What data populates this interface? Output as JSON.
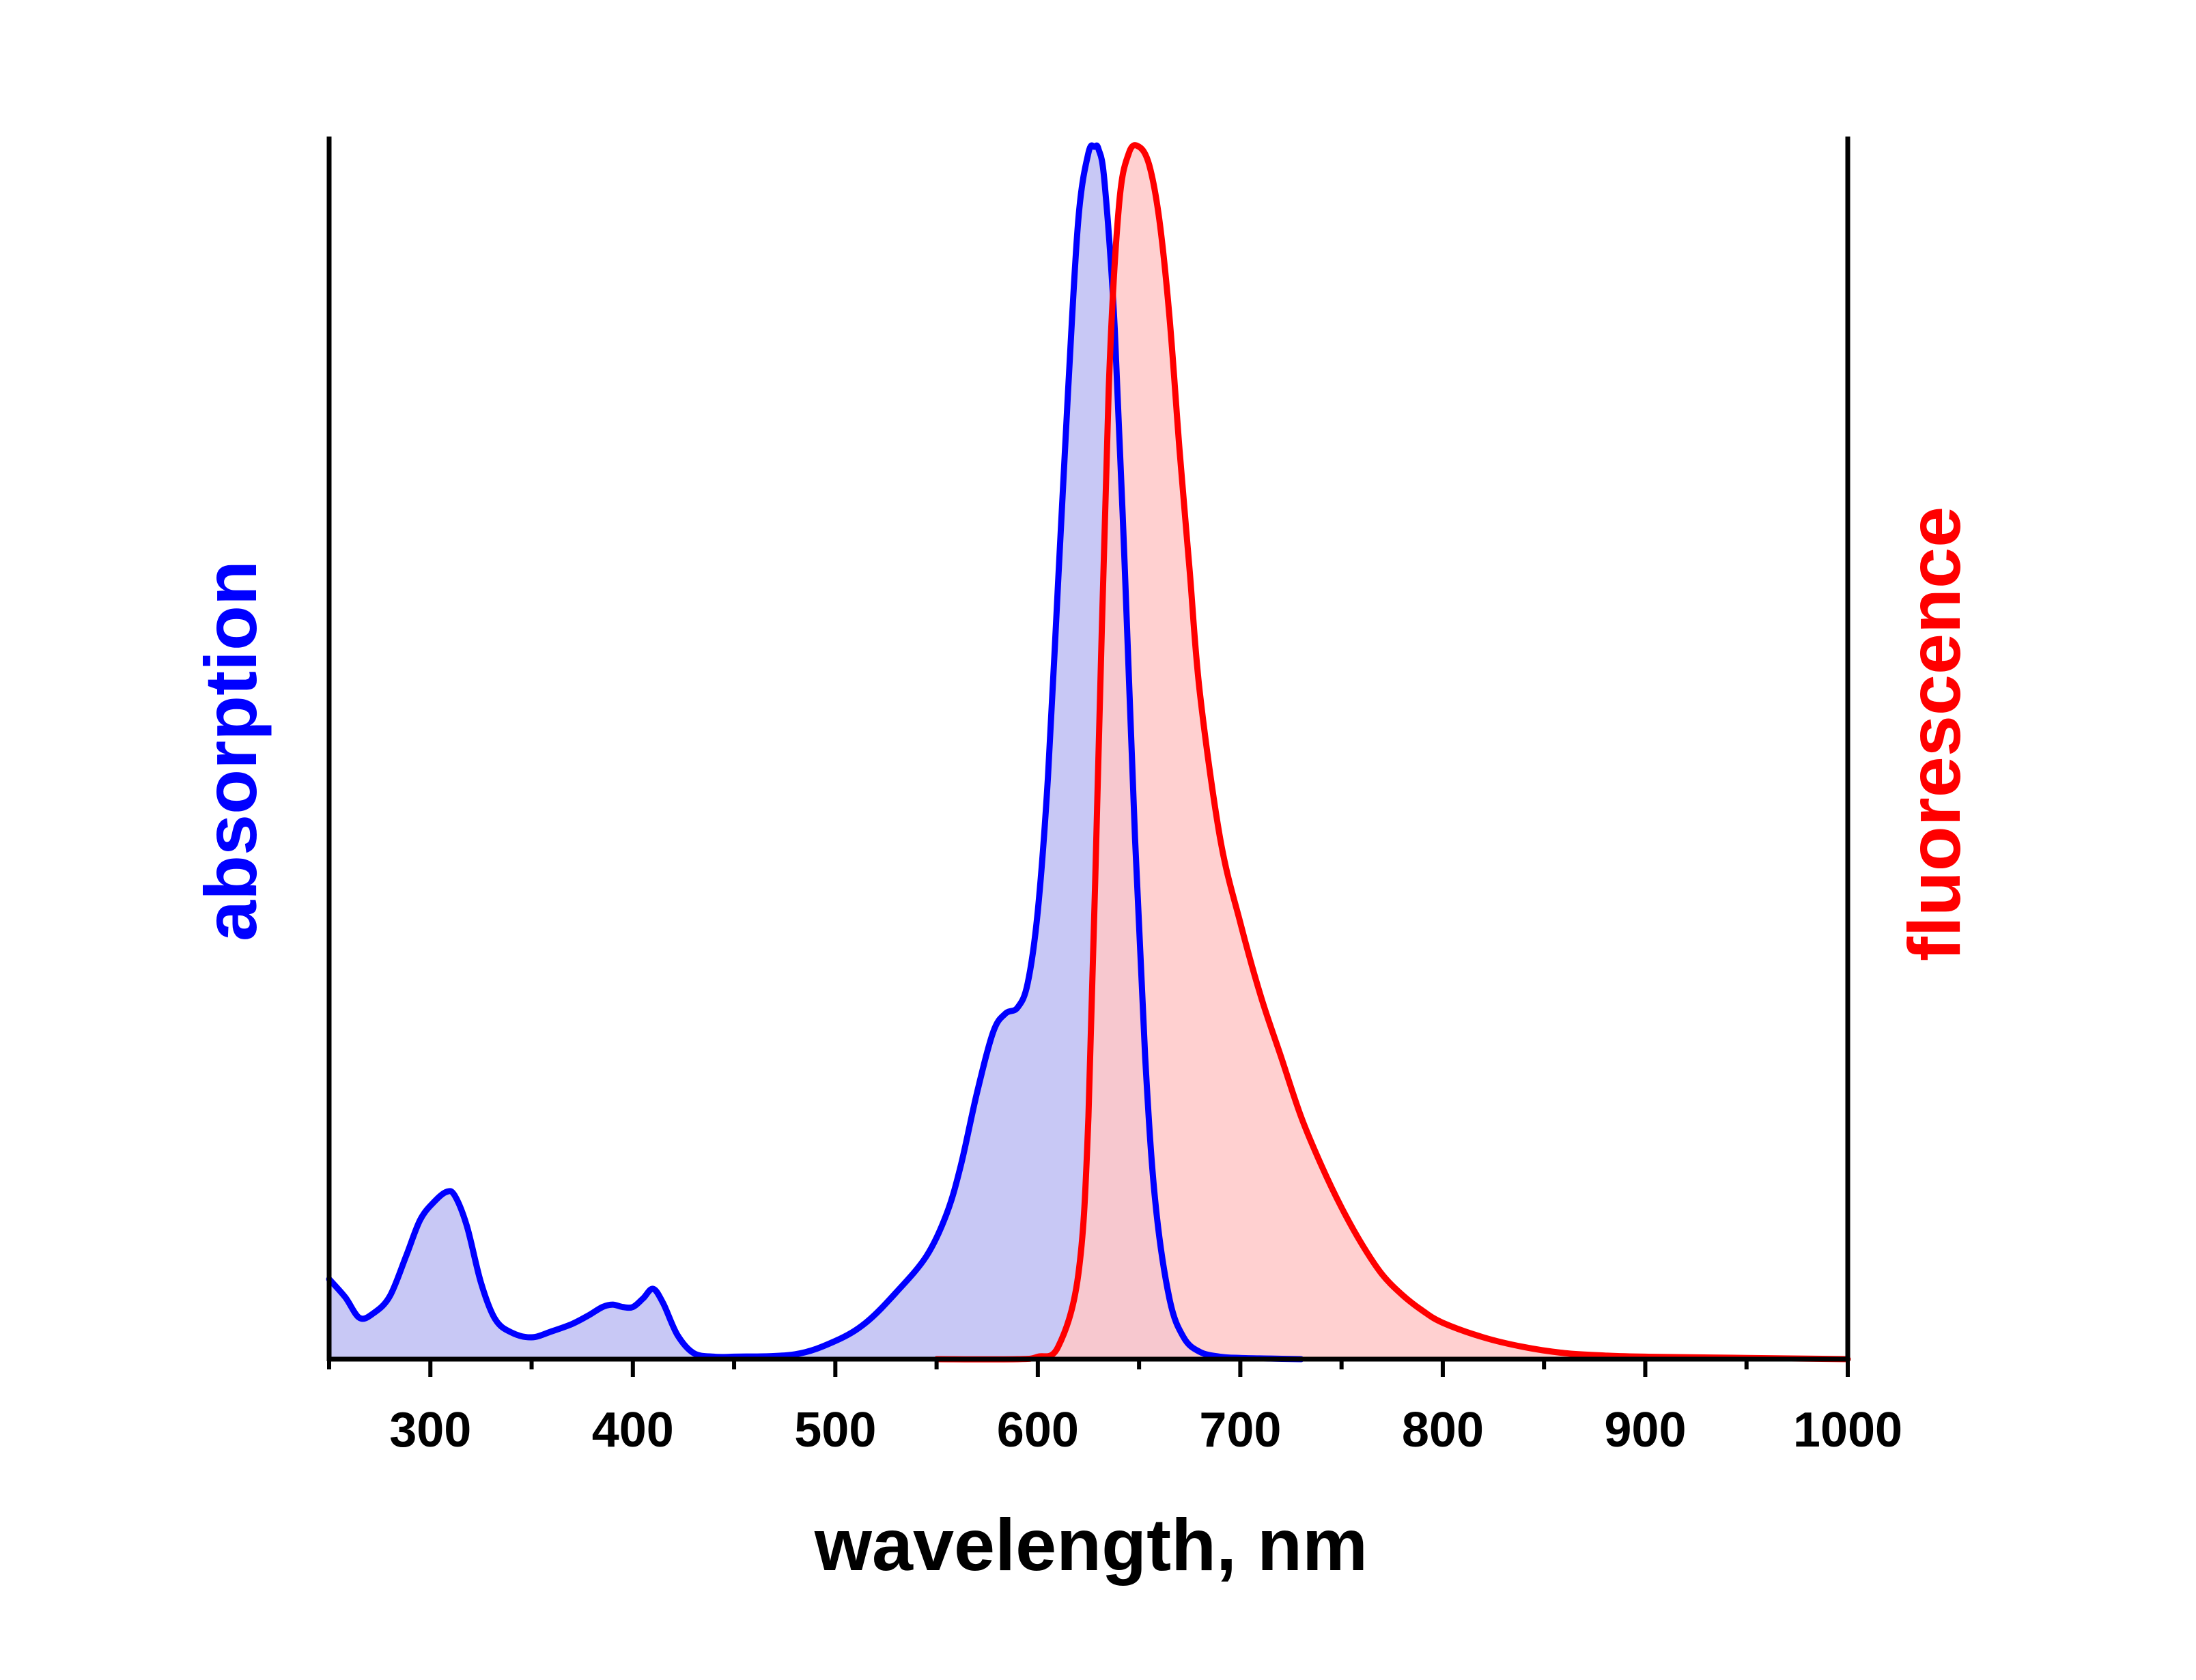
{
  "chart_data": {
    "type": "area",
    "xlabel": "wavelength, nm",
    "ylabel_left": "absorption",
    "ylabel_right": "fluorescence",
    "xlim": [
      250,
      1000
    ],
    "ylim": [
      0,
      1
    ],
    "x_ticks": [
      300,
      400,
      500,
      600,
      700,
      800,
      900,
      1000
    ],
    "x_minor_ticks": [
      250,
      350,
      450,
      550,
      650,
      750,
      850,
      950
    ],
    "grid": false,
    "colors": {
      "absorption_line": "#0000ff",
      "absorption_fill": "#c8c8f5",
      "fluorescence_line": "#ff0000",
      "fluorescence_fill": "#ffc8c8",
      "axes": "#000000"
    },
    "series": [
      {
        "axis": "left",
        "x": [
          250,
          258,
          265,
          272,
          280,
          288,
          295,
          302,
          308,
          312,
          318,
          325,
          332,
          340,
          350,
          360,
          370,
          378,
          385,
          390,
          395,
          400,
          405,
          410,
          415,
          422,
          430,
          440,
          450,
          480,
          500,
          515,
          530,
          545,
          555,
          562,
          570,
          578,
          584,
          590,
          595,
          600,
          605,
          610,
          615,
          620,
          625,
          628,
          630,
          633,
          638,
          643,
          648,
          653,
          658,
          665,
          672,
          680,
          690,
          700,
          715,
          730
        ],
        "values": [
          0.066,
          0.051,
          0.034,
          0.038,
          0.052,
          0.085,
          0.115,
          0.13,
          0.138,
          0.135,
          0.11,
          0.063,
          0.033,
          0.022,
          0.018,
          0.023,
          0.029,
          0.036,
          0.043,
          0.045,
          0.043,
          0.043,
          0.05,
          0.058,
          0.046,
          0.02,
          0.005,
          0.002,
          0.002,
          0.004,
          0.015,
          0.03,
          0.055,
          0.085,
          0.12,
          0.16,
          0.22,
          0.27,
          0.285,
          0.29,
          0.31,
          0.37,
          0.48,
          0.64,
          0.8,
          0.94,
          0.995,
          1.0,
          0.998,
          0.97,
          0.85,
          0.65,
          0.43,
          0.25,
          0.13,
          0.05,
          0.018,
          0.006,
          0.002,
          0.001,
          0.0005,
          0.0
        ]
      },
      {
        "axis": "right",
        "x": [
          550,
          590,
          600,
          610,
          620,
          625,
          630,
          635,
          640,
          645,
          650,
          655,
          660,
          665,
          670,
          675,
          680,
          690,
          700,
          710,
          720,
          730,
          740,
          750,
          760,
          770,
          780,
          790,
          800,
          820,
          840,
          860,
          880,
          900,
          950,
          1000
        ],
        "values": [
          0.0,
          0.0,
          0.002,
          0.01,
          0.07,
          0.2,
          0.5,
          0.8,
          0.95,
          0.995,
          1.0,
          0.985,
          0.94,
          0.86,
          0.75,
          0.65,
          0.55,
          0.43,
          0.36,
          0.3,
          0.25,
          0.2,
          0.16,
          0.125,
          0.095,
          0.07,
          0.053,
          0.04,
          0.03,
          0.018,
          0.01,
          0.005,
          0.003,
          0.002,
          0.001,
          0.0
        ]
      }
    ]
  }
}
